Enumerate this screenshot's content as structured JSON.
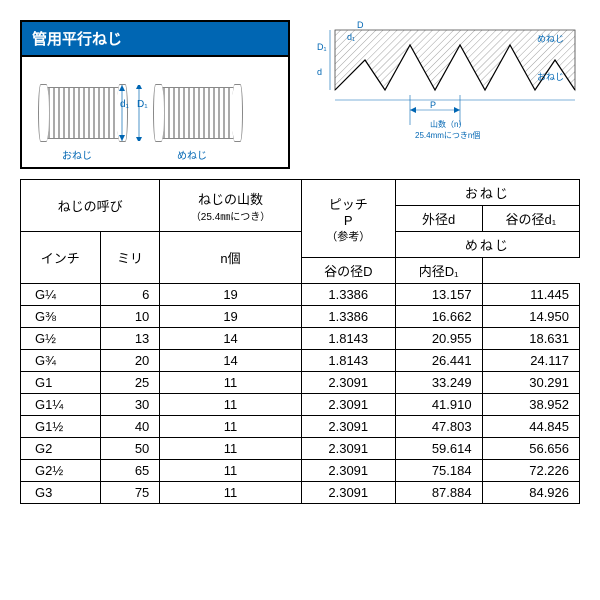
{
  "title": "管用平行ねじ",
  "diagram": {
    "left_label": "おねじ",
    "right_label": "めねじ",
    "d1": "d₁",
    "D1": "D₁",
    "D": "D",
    "d": "d",
    "P": "P",
    "threads_note": "山数（n）",
    "per_note": "25.4mmにつきn個"
  },
  "headers": {
    "thread_name": "ねじの呼び",
    "inch": "インチ",
    "mm": "ミリ",
    "threads": "ねじの山数",
    "threads_sub": "（25.4㎜につき）",
    "n": "n個",
    "pitch": "ピッチ",
    "P": "P",
    "ref": "（参考）",
    "male": "おねじ",
    "outer_d": "外径d",
    "root_d1": "谷の径d₁",
    "female": "めねじ",
    "root_D": "谷の径D",
    "inner_D1": "内径D₁"
  },
  "rows": [
    {
      "inch": "G¼",
      "mm": "6",
      "n": "19",
      "p": "1.3386",
      "od": "13.157",
      "rd": "11.445"
    },
    {
      "inch": "G⅜",
      "mm": "10",
      "n": "19",
      "p": "1.3386",
      "od": "16.662",
      "rd": "14.950"
    },
    {
      "inch": "G½",
      "mm": "13",
      "n": "14",
      "p": "1.8143",
      "od": "20.955",
      "rd": "18.631"
    },
    {
      "inch": "G¾",
      "mm": "20",
      "n": "14",
      "p": "1.8143",
      "od": "26.441",
      "rd": "24.117"
    },
    {
      "inch": "G1",
      "mm": "25",
      "n": "11",
      "p": "2.3091",
      "od": "33.249",
      "rd": "30.291"
    },
    {
      "inch": "G1¼",
      "mm": "30",
      "n": "11",
      "p": "2.3091",
      "od": "41.910",
      "rd": "38.952"
    },
    {
      "inch": "G1½",
      "mm": "40",
      "n": "11",
      "p": "2.3091",
      "od": "47.803",
      "rd": "44.845"
    },
    {
      "inch": "G2",
      "mm": "50",
      "n": "11",
      "p": "2.3091",
      "od": "59.614",
      "rd": "56.656"
    },
    {
      "inch": "G2½",
      "mm": "65",
      "n": "11",
      "p": "2.3091",
      "od": "75.184",
      "rd": "72.226"
    },
    {
      "inch": "G3",
      "mm": "75",
      "n": "11",
      "p": "2.3091",
      "od": "87.884",
      "rd": "84.926"
    }
  ]
}
